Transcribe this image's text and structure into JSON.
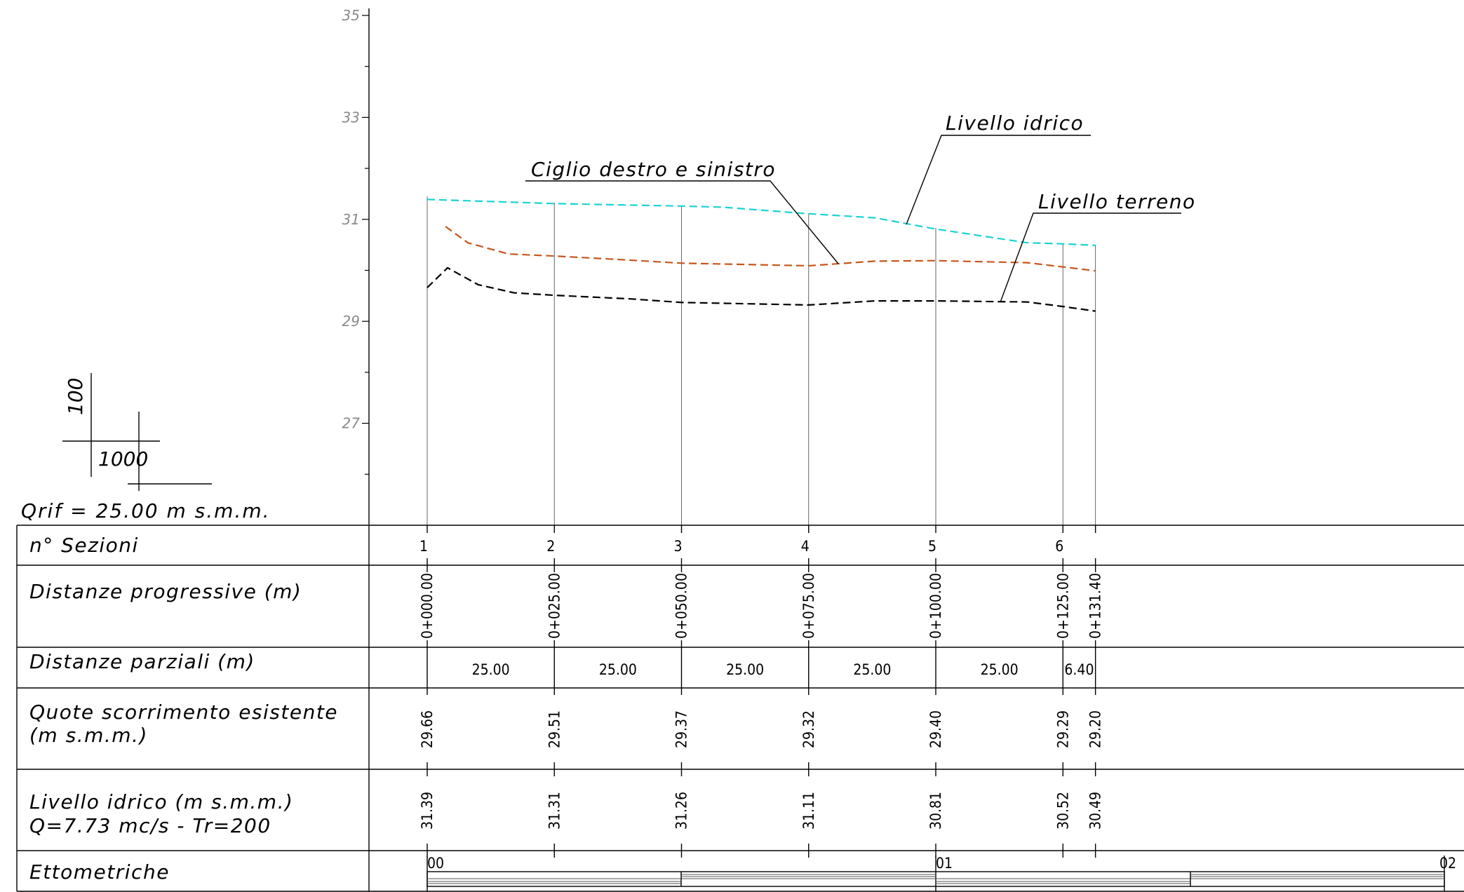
{
  "chart_data": {
    "type": "line",
    "y_axis": {
      "ticks": [
        "35",
        "33",
        "31",
        "29",
        "27"
      ],
      "ylim": [
        25,
        35
      ]
    },
    "reference": "Qrif = 25.00 m s.m.m.",
    "scale": {
      "vertical": "100",
      "horizontal": "1000"
    },
    "x": [
      0,
      25,
      50,
      75,
      100,
      125,
      131.4
    ],
    "series": [
      {
        "name": "Livello idrico",
        "color": "#19d3d3",
        "points": [
          [
            0,
            31.39
          ],
          [
            25,
            31.31
          ],
          [
            50,
            31.26
          ],
          [
            58,
            31.24
          ],
          [
            75,
            31.11
          ],
          [
            88,
            31.03
          ],
          [
            100,
            30.81
          ],
          [
            118,
            30.54
          ],
          [
            125,
            30.52
          ],
          [
            131.4,
            30.49
          ]
        ]
      },
      {
        "name": "Ciglio destro e sinistro",
        "color": "#c8541a",
        "points": [
          [
            3.6,
            30.86
          ],
          [
            8,
            30.54
          ],
          [
            16,
            30.32
          ],
          [
            25,
            30.28
          ],
          [
            38,
            30.21
          ],
          [
            50,
            30.14
          ],
          [
            75,
            30.09
          ],
          [
            88,
            30.18
          ],
          [
            100,
            30.19
          ],
          [
            118,
            30.15
          ],
          [
            131.4,
            29.99
          ]
        ]
      },
      {
        "name": "Livello terreno",
        "color": "#000000",
        "points": [
          [
            0,
            29.66
          ],
          [
            4,
            30.05
          ],
          [
            10,
            29.72
          ],
          [
            17,
            29.56
          ],
          [
            25,
            29.51
          ],
          [
            40,
            29.44
          ],
          [
            50,
            29.37
          ],
          [
            75,
            29.32
          ],
          [
            88,
            29.4
          ],
          [
            100,
            29.4
          ],
          [
            118,
            29.38
          ],
          [
            125,
            29.29
          ],
          [
            131.4,
            29.2
          ]
        ]
      }
    ],
    "annotations": [
      "Livello idrico",
      "Ciglio destro e sinistro",
      "Livello terreno"
    ],
    "table": {
      "rows": [
        {
          "label": [
            "n° Sezioni"
          ],
          "values": [
            "1",
            "2",
            "3",
            "4",
            "5",
            "6"
          ]
        },
        {
          "label": [
            "Distanze progressive (m)"
          ],
          "values": [
            "0+000.00",
            "0+025.00",
            "0+050.00",
            "0+075.00",
            "0+100.00",
            "0+125.00",
            "0+131.40"
          ]
        },
        {
          "label": [
            "Distanze parziali (m)"
          ],
          "values": [
            "25.00",
            "25.00",
            "25.00",
            "25.00",
            "25.00",
            "6.40"
          ]
        },
        {
          "label": [
            "Quote scorrimento esistente",
            "(m s.m.m.)"
          ],
          "values": [
            "29.66",
            "29.51",
            "29.37",
            "29.32",
            "29.40",
            "29.29",
            "29.20"
          ]
        },
        {
          "label": [
            "Livello idrico (m s.m.m.)",
            "Q=7.73 mc/s - Tr=200"
          ],
          "values": [
            "31.39",
            "31.31",
            "31.26",
            "31.11",
            "30.81",
            "30.52",
            "30.49"
          ]
        },
        {
          "label": [
            "Ettometriche"
          ],
          "values": [
            "00",
            "01",
            "02"
          ]
        }
      ]
    }
  }
}
